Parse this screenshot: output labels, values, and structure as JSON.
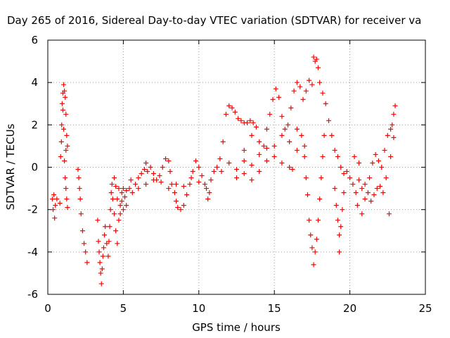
{
  "chart_data": {
    "type": "scatter",
    "title": "Day 265 of 2016, Sidereal Day-to-day VTEC variation (SDTVAR) for receiver va",
    "xlabel": "GPS time / hours",
    "ylabel": "SDTVAR / TECUs",
    "xlim": [
      0,
      25
    ],
    "ylim": [
      -6,
      6
    ],
    "xticks": [
      0,
      5,
      10,
      15,
      20,
      25
    ],
    "yticks": [
      -6,
      -4,
      -2,
      0,
      2,
      4,
      6
    ],
    "xtick_labels": [
      "0",
      "5",
      "10",
      "15",
      "20",
      "25"
    ],
    "ytick_labels": [
      "-6",
      "-4",
      "-2",
      "0",
      "2",
      "4",
      "6"
    ],
    "grid": true,
    "marker": "plus",
    "series": [
      {
        "color": "#ff0000",
        "points": [
          [
            0.3,
            -1.5
          ],
          [
            0.35,
            -2.0
          ],
          [
            0.4,
            -1.3
          ],
          [
            0.45,
            -2.4
          ],
          [
            0.5,
            -1.8
          ],
          [
            0.6,
            -1.5
          ],
          [
            0.8,
            -1.7
          ],
          [
            0.85,
            0.5
          ],
          [
            0.9,
            1.2
          ],
          [
            0.92,
            2.0
          ],
          [
            0.95,
            3.0
          ],
          [
            1.0,
            3.5
          ],
          [
            1.05,
            3.9
          ],
          [
            1.1,
            3.6
          ],
          [
            1.15,
            3.3
          ],
          [
            1.2,
            2.5
          ],
          [
            1.25,
            1.5
          ],
          [
            1.3,
            1.0
          ],
          [
            1.1,
            0.3
          ],
          [
            1.15,
            -0.5
          ],
          [
            1.2,
            -1.0
          ],
          [
            1.25,
            -1.5
          ],
          [
            1.3,
            -1.9
          ],
          [
            1.0,
            2.7
          ],
          [
            1.05,
            1.8
          ],
          [
            1.2,
            0.8
          ],
          [
            2.0,
            -0.1
          ],
          [
            2.05,
            -0.5
          ],
          [
            2.1,
            -1.0
          ],
          [
            2.15,
            -1.5
          ],
          [
            2.2,
            -2.2
          ],
          [
            2.3,
            -3.0
          ],
          [
            2.4,
            -3.6
          ],
          [
            2.5,
            -4.0
          ],
          [
            2.6,
            -4.5
          ],
          [
            3.3,
            -2.5
          ],
          [
            3.35,
            -3.5
          ],
          [
            3.4,
            -4.0
          ],
          [
            3.45,
            -4.5
          ],
          [
            3.5,
            -5.0
          ],
          [
            3.55,
            -5.5
          ],
          [
            3.6,
            -4.8
          ],
          [
            3.65,
            -4.2
          ],
          [
            3.7,
            -3.8
          ],
          [
            3.75,
            -3.2
          ],
          [
            3.8,
            -2.8
          ],
          [
            3.9,
            -3.6
          ],
          [
            4.0,
            -4.2
          ],
          [
            4.05,
            -3.5
          ],
          [
            4.1,
            -2.8
          ],
          [
            4.15,
            -2.0
          ],
          [
            4.2,
            -1.2
          ],
          [
            4.25,
            -0.8
          ],
          [
            4.3,
            -1.5
          ],
          [
            4.4,
            -2.2
          ],
          [
            4.5,
            -3.0
          ],
          [
            4.6,
            -3.6
          ],
          [
            4.7,
            -2.5
          ],
          [
            4.8,
            -1.8
          ],
          [
            4.9,
            -1.2
          ],
          [
            5.0,
            -1.0
          ],
          [
            5.1,
            -1.4
          ],
          [
            5.2,
            -1.1
          ],
          [
            4.4,
            -0.5
          ],
          [
            4.5,
            -0.9
          ],
          [
            4.6,
            -1.5
          ],
          [
            4.7,
            -1.0
          ],
          [
            4.8,
            -2.2
          ],
          [
            4.9,
            -1.6
          ],
          [
            5.0,
            -2.0
          ],
          [
            5.2,
            -1.8
          ],
          [
            5.4,
            -1.0
          ],
          [
            5.5,
            -0.6
          ],
          [
            5.6,
            -1.2
          ],
          [
            5.8,
            -0.8
          ],
          [
            6.0,
            -0.5
          ],
          [
            6.2,
            -0.3
          ],
          [
            6.4,
            -0.1
          ],
          [
            6.5,
            0.2
          ],
          [
            6.6,
            -0.2
          ],
          [
            6.8,
            0.0
          ],
          [
            7.0,
            -0.3
          ],
          [
            7.2,
            -0.6
          ],
          [
            7.4,
            -0.4
          ],
          [
            7.6,
            0.0
          ],
          [
            7.8,
            0.4
          ],
          [
            8.0,
            0.3
          ],
          [
            8.1,
            -0.2
          ],
          [
            8.2,
            -0.8
          ],
          [
            8.4,
            -1.2
          ],
          [
            8.5,
            -1.6
          ],
          [
            8.6,
            -1.9
          ],
          [
            8.8,
            -2.0
          ],
          [
            9.0,
            -1.8
          ],
          [
            9.2,
            -1.3
          ],
          [
            9.4,
            -0.8
          ],
          [
            9.6,
            -0.2
          ],
          [
            9.8,
            0.3
          ],
          [
            10.0,
            0.0
          ],
          [
            10.2,
            -0.4
          ],
          [
            10.4,
            -0.8
          ],
          [
            10.5,
            -1.0
          ],
          [
            10.6,
            -1.5
          ],
          [
            10.7,
            -1.2
          ],
          [
            10.8,
            -0.6
          ],
          [
            11.0,
            -0.2
          ],
          [
            6.0,
            -1.0
          ],
          [
            6.5,
            -0.8
          ],
          [
            7.0,
            -0.6
          ],
          [
            7.5,
            -0.7
          ],
          [
            8.0,
            -1.0
          ],
          [
            8.5,
            -0.8
          ],
          [
            9.0,
            -0.9
          ],
          [
            9.5,
            -0.5
          ],
          [
            10.0,
            -0.7
          ],
          [
            11.2,
            0.0
          ],
          [
            11.4,
            0.4
          ],
          [
            11.6,
            1.2
          ],
          [
            11.8,
            2.5
          ],
          [
            12.0,
            2.9
          ],
          [
            12.2,
            2.8
          ],
          [
            12.4,
            2.6
          ],
          [
            12.6,
            2.3
          ],
          [
            12.8,
            2.2
          ],
          [
            13.0,
            2.1
          ],
          [
            13.2,
            2.1
          ],
          [
            13.4,
            2.2
          ],
          [
            13.6,
            2.1
          ],
          [
            13.8,
            1.9
          ],
          [
            11.5,
            -0.2
          ],
          [
            12.0,
            0.2
          ],
          [
            12.5,
            -0.1
          ],
          [
            13.0,
            0.3
          ],
          [
            13.5,
            0.1
          ],
          [
            14.0,
            0.6
          ],
          [
            14.3,
            1.0
          ],
          [
            14.5,
            1.8
          ],
          [
            14.7,
            2.5
          ],
          [
            14.9,
            3.2
          ],
          [
            15.1,
            3.7
          ],
          [
            15.3,
            3.3
          ],
          [
            15.5,
            2.4
          ],
          [
            15.7,
            1.8
          ],
          [
            15.9,
            2.0
          ],
          [
            16.1,
            2.8
          ],
          [
            16.3,
            3.6
          ],
          [
            16.5,
            4.0
          ],
          [
            16.7,
            3.8
          ],
          [
            16.9,
            3.2
          ],
          [
            17.1,
            3.6
          ],
          [
            17.3,
            4.1
          ],
          [
            17.5,
            3.9
          ],
          [
            13.0,
            0.8
          ],
          [
            13.5,
            1.5
          ],
          [
            14.0,
            1.2
          ],
          [
            14.5,
            0.9
          ],
          [
            15.0,
            0.5
          ],
          [
            15.5,
            0.2
          ],
          [
            16.0,
            0.0
          ],
          [
            16.2,
            -0.1
          ],
          [
            16.5,
            0.8
          ],
          [
            16.8,
            1.5
          ],
          [
            17.0,
            1.0
          ],
          [
            12.5,
            -0.5
          ],
          [
            13.0,
            -0.3
          ],
          [
            13.5,
            -0.6
          ],
          [
            14.0,
            -0.2
          ],
          [
            14.5,
            0.3
          ],
          [
            15.0,
            1.0
          ],
          [
            15.5,
            1.5
          ],
          [
            16.0,
            1.2
          ],
          [
            16.5,
            1.8
          ],
          [
            17.0,
            0.5
          ],
          [
            17.1,
            -0.5
          ],
          [
            17.2,
            -1.3
          ],
          [
            17.3,
            -2.5
          ],
          [
            17.4,
            -3.2
          ],
          [
            17.5,
            -3.8
          ],
          [
            17.6,
            -4.6
          ],
          [
            17.7,
            -4.0
          ],
          [
            17.8,
            -3.4
          ],
          [
            17.9,
            -2.5
          ],
          [
            18.0,
            -1.5
          ],
          [
            18.1,
            -0.5
          ],
          [
            18.2,
            0.5
          ],
          [
            18.3,
            1.5
          ],
          [
            17.6,
            5.2
          ],
          [
            17.7,
            5.0
          ],
          [
            17.8,
            5.1
          ],
          [
            17.9,
            4.7
          ],
          [
            18.0,
            4.0
          ],
          [
            18.2,
            3.5
          ],
          [
            18.4,
            3.0
          ],
          [
            18.6,
            2.2
          ],
          [
            18.8,
            1.5
          ],
          [
            19.0,
            0.8
          ],
          [
            19.2,
            0.5
          ],
          [
            19.4,
            0.0
          ],
          [
            19.6,
            -0.3
          ],
          [
            19.8,
            -0.2
          ],
          [
            20.0,
            -0.5
          ],
          [
            19.0,
            -1.0
          ],
          [
            19.1,
            -1.8
          ],
          [
            19.2,
            -2.5
          ],
          [
            19.3,
            -3.2
          ],
          [
            19.4,
            -2.8
          ],
          [
            19.5,
            -2.0
          ],
          [
            19.6,
            -1.2
          ],
          [
            19.3,
            -4.0
          ],
          [
            20.2,
            -0.8
          ],
          [
            20.4,
            -1.2
          ],
          [
            20.6,
            -0.6
          ],
          [
            20.8,
            -1.0
          ],
          [
            21.0,
            -0.8
          ],
          [
            21.2,
            -1.2
          ],
          [
            21.4,
            -1.6
          ],
          [
            21.6,
            -1.3
          ],
          [
            21.8,
            -1.0
          ],
          [
            22.0,
            -0.9
          ],
          [
            22.2,
            -1.2
          ],
          [
            22.4,
            -0.5
          ],
          [
            20.5,
            -1.8
          ],
          [
            20.8,
            -2.2
          ],
          [
            21.0,
            -1.5
          ],
          [
            21.3,
            -0.5
          ],
          [
            21.5,
            0.2
          ],
          [
            21.7,
            0.6
          ],
          [
            21.9,
            0.3
          ],
          [
            22.1,
            0.0
          ],
          [
            22.3,
            0.8
          ],
          [
            22.5,
            1.5
          ],
          [
            22.7,
            1.8
          ],
          [
            22.9,
            2.5
          ],
          [
            23.0,
            2.9
          ],
          [
            22.6,
            -2.2
          ],
          [
            22.8,
            2.0
          ],
          [
            22.9,
            1.4
          ],
          [
            22.7,
            0.5
          ],
          [
            20.3,
            0.5
          ],
          [
            20.6,
            0.2
          ]
        ]
      }
    ]
  }
}
